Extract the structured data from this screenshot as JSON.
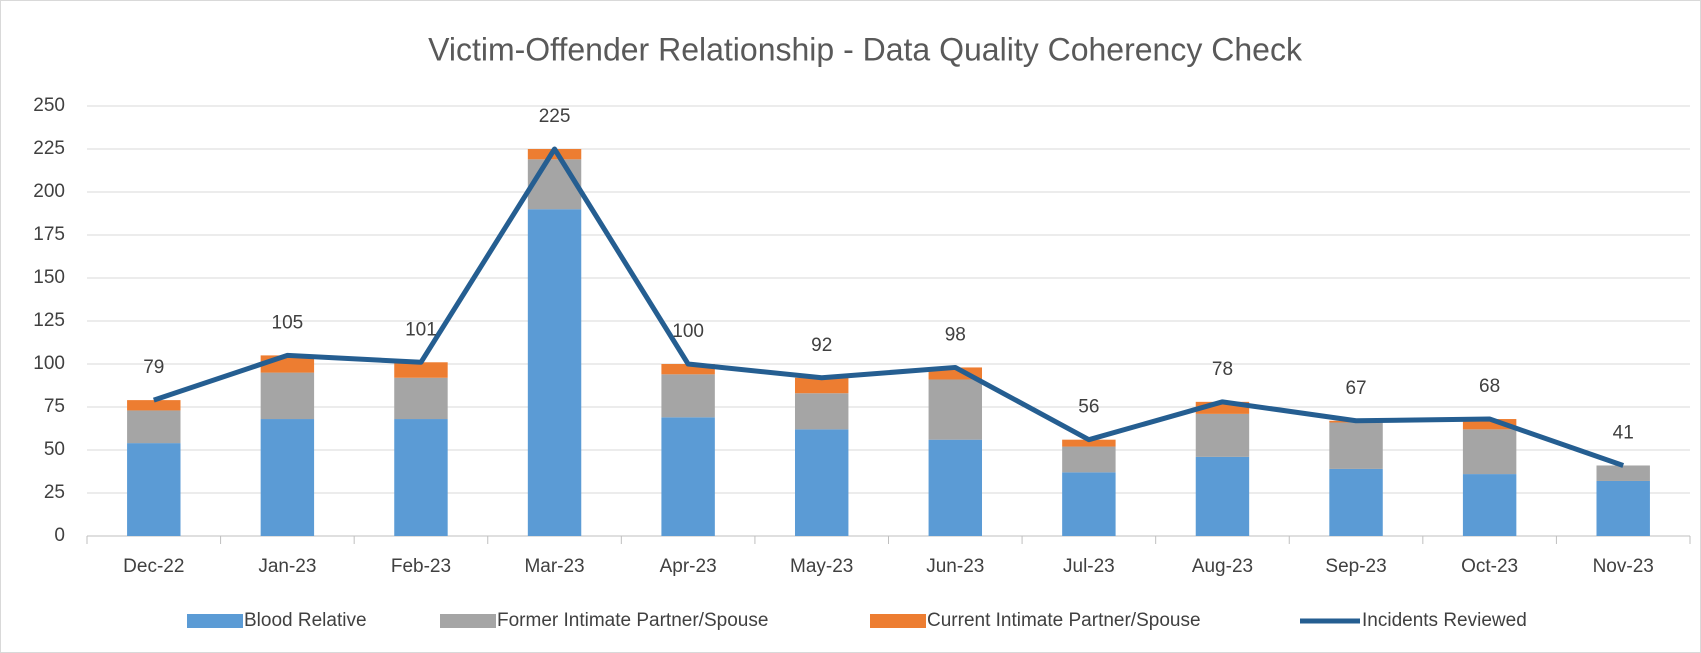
{
  "chart_data": {
    "type": "bar",
    "stacked": true,
    "title": "Victim-Offender Relationship - Data Quality Coherency Check",
    "categories": [
      "Dec-22",
      "Jan-23",
      "Feb-23",
      "Mar-23",
      "Apr-23",
      "May-23",
      "Jun-23",
      "Jul-23",
      "Aug-23",
      "Sep-23",
      "Oct-23",
      "Nov-23"
    ],
    "series": [
      {
        "name": "Blood Relative",
        "color": "#5b9bd5",
        "values": [
          54,
          68,
          68,
          190,
          69,
          62,
          56,
          37,
          46,
          39,
          36,
          32
        ]
      },
      {
        "name": "Former Intimate Partner/Spouse",
        "color": "#a5a5a5",
        "values": [
          19,
          27,
          24,
          29,
          25,
          21,
          35,
          15,
          25,
          27,
          26,
          9
        ]
      },
      {
        "name": "Current Intimate Partner/Spouse",
        "color": "#ed7d31",
        "values": [
          6,
          10,
          9,
          6,
          6,
          9,
          7,
          4,
          7,
          1,
          6,
          0
        ]
      },
      {
        "name": "Incidents Reviewed",
        "color": "#255e91",
        "type": "line",
        "data_labels": true,
        "values": [
          79,
          105,
          101,
          225,
          100,
          92,
          98,
          56,
          78,
          67,
          68,
          41
        ]
      }
    ],
    "ylim": [
      0,
      250
    ],
    "yticks": [
      0,
      25,
      50,
      75,
      100,
      125,
      150,
      175,
      200,
      225,
      250
    ],
    "grid": true,
    "legend": "bottom"
  }
}
